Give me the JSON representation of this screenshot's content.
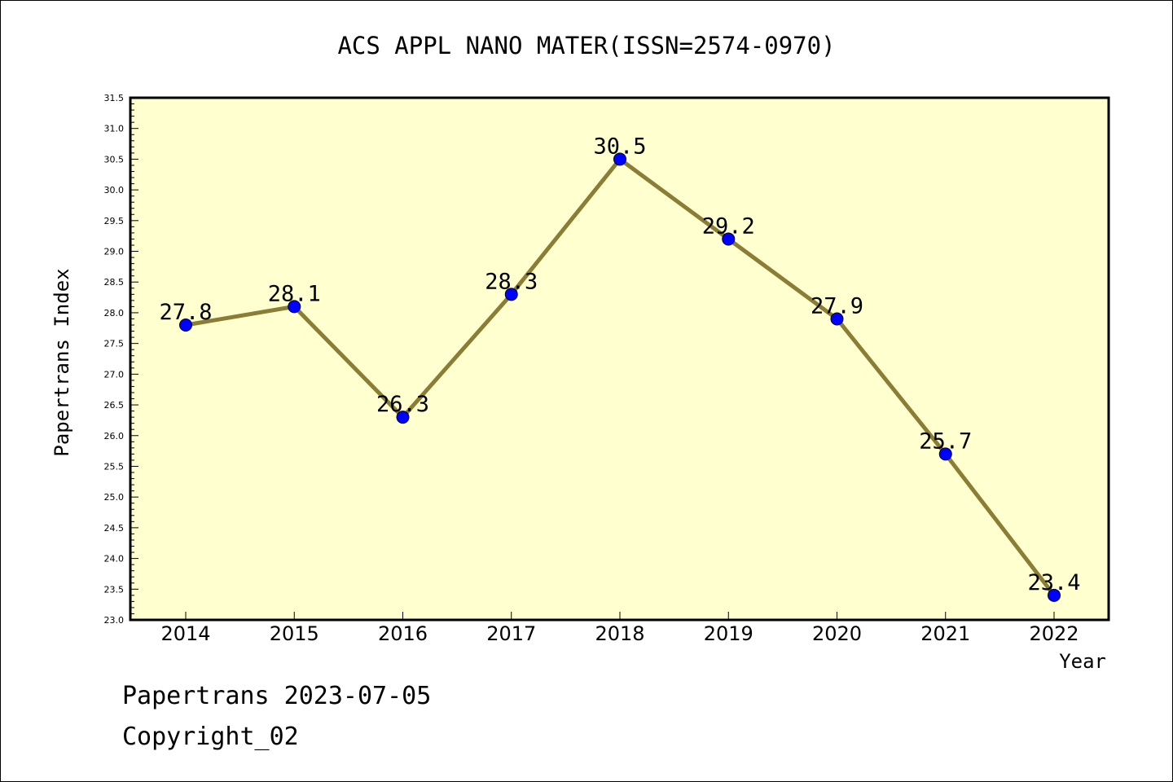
{
  "chart_data": {
    "type": "line",
    "title": "ACS APPL NANO MATER(ISSN=2574-0970)",
    "xlabel": "Year",
    "ylabel": "Papertrans Index",
    "categories": [
      "2014",
      "2015",
      "2016",
      "2017",
      "2018",
      "2019",
      "2020",
      "2021",
      "2022"
    ],
    "values": [
      27.8,
      28.1,
      26.3,
      28.3,
      30.5,
      29.2,
      27.9,
      25.7,
      23.4
    ],
    "data_labels": [
      "27.8",
      "28.1",
      "26.3",
      "28.3",
      "30.5",
      "29.2",
      "27.9",
      "25.7",
      "23.4"
    ],
    "ylim": [
      23.0,
      31.5
    ],
    "yticks": [
      "23.0",
      "23.5",
      "24.0",
      "24.5",
      "25.0",
      "25.5",
      "26.0",
      "26.5",
      "27.0",
      "27.5",
      "28.0",
      "28.5",
      "29.0",
      "29.5",
      "30.0",
      "30.5",
      "31.0",
      "31.5"
    ],
    "grid": false,
    "colors": {
      "plot_background": "#ffffd0",
      "line": "#8b7d35",
      "marker": "#0000ff"
    }
  },
  "footer": {
    "source": "Papertrans 2023-07-05",
    "copyright": "Copyright_02"
  }
}
